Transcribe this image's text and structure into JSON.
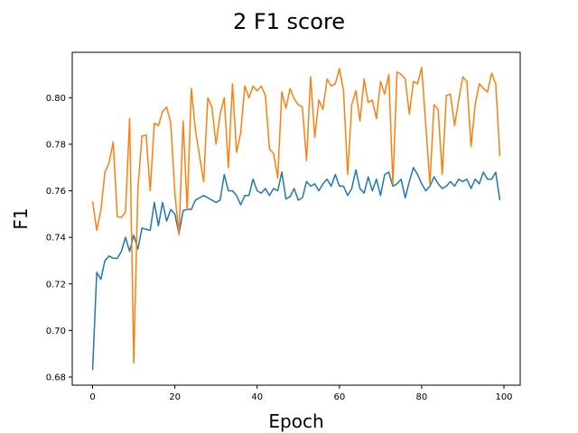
{
  "chart_data": {
    "type": "line",
    "title": "2 F1 score",
    "xlabel": "Epoch",
    "ylabel": "F1",
    "xlim": [
      -4.95,
      103.95
    ],
    "ylim": [
      0.6765,
      0.8195
    ],
    "xticks": [
      0,
      20,
      40,
      60,
      80,
      100
    ],
    "yticks": [
      0.68,
      0.7,
      0.72,
      0.74,
      0.76,
      0.78,
      0.8
    ],
    "ytick_labels": [
      "0.68",
      "0.70",
      "0.72",
      "0.74",
      "0.76",
      "0.78",
      "0.80"
    ],
    "grid": false,
    "legend": "none",
    "series": [
      {
        "color": "#1f77b4",
        "x": [
          0,
          1,
          2,
          3,
          4,
          5,
          6,
          7,
          8,
          9,
          10,
          11,
          12,
          13,
          14,
          15,
          16,
          17,
          18,
          19,
          20,
          21,
          22,
          23,
          24,
          25,
          26,
          27,
          28,
          29,
          30,
          31,
          32,
          33,
          34,
          35,
          36,
          37,
          38,
          39,
          40,
          41,
          42,
          43,
          44,
          45,
          46,
          47,
          48,
          49,
          50,
          51,
          52,
          53,
          54,
          55,
          56,
          57,
          58,
          59,
          60,
          61,
          62,
          63,
          64,
          65,
          66,
          67,
          68,
          69,
          70,
          71,
          72,
          73,
          74,
          75,
          76,
          77,
          78,
          79,
          80,
          81,
          82,
          83,
          84,
          85,
          86,
          87,
          88,
          89,
          90,
          91,
          92,
          93,
          94,
          95,
          96,
          97,
          98,
          99
        ],
        "values": [
          0.683,
          0.725,
          0.722,
          0.73,
          0.732,
          0.731,
          0.731,
          0.734,
          0.74,
          0.734,
          0.741,
          0.735,
          0.744,
          0.7435,
          0.743,
          0.755,
          0.745,
          0.755,
          0.747,
          0.752,
          0.75,
          0.7415,
          0.7515,
          0.752,
          0.752,
          0.756,
          0.757,
          0.758,
          0.757,
          0.756,
          0.755,
          0.756,
          0.767,
          0.76,
          0.76,
          0.758,
          0.754,
          0.758,
          0.758,
          0.765,
          0.76,
          0.759,
          0.761,
          0.758,
          0.761,
          0.76,
          0.768,
          0.7565,
          0.7575,
          0.761,
          0.756,
          0.757,
          0.764,
          0.762,
          0.763,
          0.76,
          0.763,
          0.765,
          0.762,
          0.767,
          0.762,
          0.762,
          0.758,
          0.761,
          0.769,
          0.761,
          0.759,
          0.766,
          0.76,
          0.765,
          0.758,
          0.767,
          0.768,
          0.762,
          0.763,
          0.765,
          0.757,
          0.764,
          0.77,
          0.767,
          0.763,
          0.76,
          0.762,
          0.766,
          0.763,
          0.761,
          0.762,
          0.764,
          0.762,
          0.765,
          0.764,
          0.765,
          0.761,
          0.765,
          0.763,
          0.768,
          0.765,
          0.765,
          0.768,
          0.756
        ]
      },
      {
        "color": "#ff7f0e",
        "x": [
          0,
          1,
          2,
          3,
          4,
          5,
          6,
          7,
          8,
          9,
          10,
          11,
          12,
          13,
          14,
          15,
          16,
          17,
          18,
          19,
          20,
          21,
          22,
          23,
          24,
          25,
          26,
          27,
          28,
          29,
          30,
          31,
          32,
          33,
          34,
          35,
          36,
          37,
          38,
          39,
          40,
          41,
          42,
          43,
          44,
          45,
          46,
          47,
          48,
          49,
          50,
          51,
          52,
          53,
          54,
          55,
          56,
          57,
          58,
          59,
          60,
          61,
          62,
          63,
          64,
          65,
          66,
          67,
          68,
          69,
          70,
          71,
          72,
          73,
          74,
          75,
          76,
          77,
          78,
          79,
          80,
          81,
          82,
          83,
          84,
          85,
          86,
          87,
          88,
          89,
          90,
          91,
          92,
          93,
          94,
          95,
          96,
          97,
          98,
          99
        ],
        "values": [
          0.7555,
          0.743,
          0.7515,
          0.768,
          0.772,
          0.781,
          0.749,
          0.7485,
          0.751,
          0.791,
          0.686,
          0.7605,
          0.7835,
          0.784,
          0.76,
          0.789,
          0.788,
          0.794,
          0.796,
          0.789,
          0.759,
          0.741,
          0.79,
          0.752,
          0.804,
          0.786,
          0.775,
          0.764,
          0.8,
          0.796,
          0.78,
          0.793,
          0.8,
          0.77,
          0.806,
          0.7765,
          0.785,
          0.805,
          0.8,
          0.805,
          0.803,
          0.805,
          0.801,
          0.778,
          0.776,
          0.7655,
          0.8025,
          0.7955,
          0.804,
          0.7995,
          0.797,
          0.796,
          0.773,
          0.809,
          0.783,
          0.799,
          0.795,
          0.808,
          0.805,
          0.806,
          0.8125,
          0.803,
          0.767,
          0.797,
          0.803,
          0.79,
          0.808,
          0.798,
          0.799,
          0.791,
          0.807,
          0.8015,
          0.81,
          0.763,
          0.811,
          0.81,
          0.808,
          0.793,
          0.807,
          0.806,
          0.813,
          0.788,
          0.763,
          0.797,
          0.795,
          0.767,
          0.801,
          0.8015,
          0.788,
          0.799,
          0.809,
          0.807,
          0.779,
          0.797,
          0.806,
          0.804,
          0.8025,
          0.8105,
          0.806,
          0.775
        ]
      }
    ]
  }
}
